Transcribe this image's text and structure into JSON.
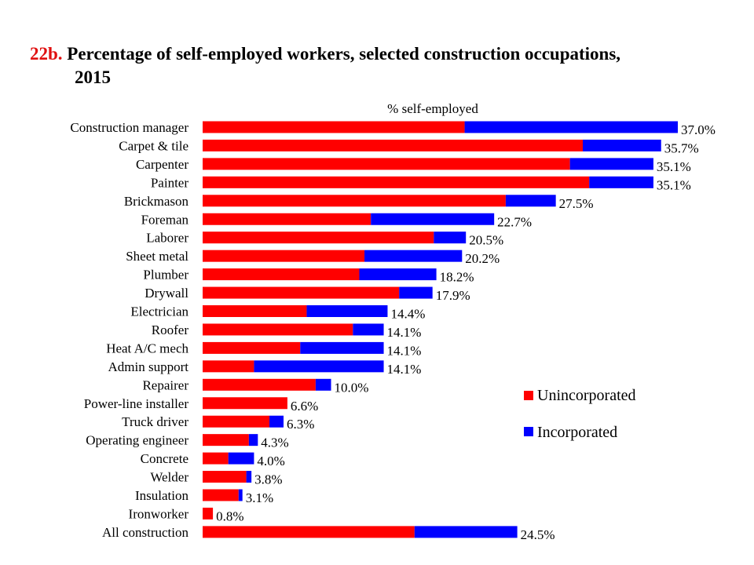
{
  "header": {
    "number": "22b.",
    "title_line1": "Percentage of self-employed workers, selected construction occupations,",
    "title_line2": "2015"
  },
  "chart_data": {
    "type": "bar",
    "orientation": "horizontal",
    "stacked": true,
    "xlabel": "% self-employed",
    "xlim": [
      0,
      37.5
    ],
    "grid": false,
    "legend_position": "right",
    "categories": [
      "Construction manager",
      "Carpet & tile",
      "Carpenter",
      "Painter",
      "Brickmason",
      "Foreman",
      "Laborer",
      "Sheet metal",
      "Plumber",
      "Drywall",
      "Electrician",
      "Roofer",
      "Heat A/C mech",
      "Admin support",
      "Repairer",
      "Power-line installer",
      "Truck driver",
      "Operating engineer",
      "Concrete",
      "Welder",
      "Insulation",
      "Ironworker",
      "All construction"
    ],
    "series": [
      {
        "name": "Unincorporated",
        "color": "#ff0000",
        "values": [
          20.4,
          29.6,
          28.6,
          30.1,
          23.6,
          13.1,
          18.0,
          12.6,
          12.2,
          15.3,
          8.1,
          11.7,
          7.6,
          4.0,
          8.8,
          6.6,
          5.2,
          3.6,
          2.0,
          3.4,
          2.8,
          0.8,
          16.5
        ]
      },
      {
        "name": "Incorporated",
        "color": "#0000ff",
        "values": [
          16.6,
          6.1,
          6.5,
          5.0,
          3.9,
          9.6,
          2.5,
          7.6,
          6.0,
          2.6,
          6.3,
          2.4,
          6.5,
          10.1,
          1.2,
          0.0,
          1.1,
          0.7,
          2.0,
          0.4,
          0.3,
          0.0,
          8.0
        ]
      }
    ],
    "totals_labels": [
      "37.0%",
      "35.7%",
      "35.1%",
      "35.1%",
      "27.5%",
      "22.7%",
      "20.5%",
      "20.2%",
      "18.2%",
      "17.9%",
      "14.4%",
      "14.1%",
      "14.1%",
      "14.1%",
      "10.0%",
      "6.6%",
      "6.3%",
      "4.3%",
      "4.0%",
      "3.8%",
      "3.1%",
      "0.8%",
      "24.5%"
    ]
  }
}
